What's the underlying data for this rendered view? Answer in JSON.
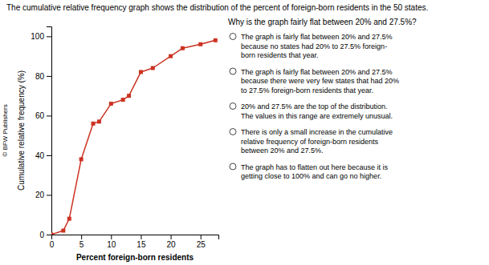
{
  "chart_data": {
    "type": "line",
    "title": "The cumulative relative frequency graph shows the distribution of the percent of foreign-born residents in the 50 states.",
    "x_label": "Percent foreign-born residents",
    "y_label": "Cumulative relative frequency (%)",
    "x": [
      0,
      2,
      3,
      5,
      7,
      8,
      10,
      12,
      13,
      15,
      17,
      20,
      22,
      25,
      27.5
    ],
    "values": [
      0,
      2,
      8,
      38,
      56,
      57,
      66,
      68,
      70,
      82,
      84,
      90,
      94,
      96,
      98
    ],
    "color": "#cc3322",
    "marker": "square",
    "xlim": [
      0,
      28
    ],
    "ylim": [
      0,
      105
    ],
    "xticks": [
      0,
      5,
      10,
      15,
      20,
      25
    ],
    "yticks": [
      0,
      20,
      40,
      60,
      80,
      100
    ],
    "annotations": [
      "© BFW Publishers",
      "Why is the graph fairly flat between 20% and 27.5%?",
      "The graph is fairly flat between 20% and 27.5%\nbecause no states had 20% to 27.5% foreign-\nborn residents that year.",
      "The graph is fairly flat between 20% and 27.5%\nbecause there were very few states that had 20%\nto 27.5% foreign-born residents that year.",
      "20% and 27.5% are the top of the distribution.\nThe values in this range are extremely unusual.",
      "There is only a small increase in the cumulative\nrelative frequency of foreign-born residents\nbetween 20% and 27.5%.",
      "The graph has to flatten out here because it is\ngetting close to 100% and can go no higher."
    ]
  }
}
